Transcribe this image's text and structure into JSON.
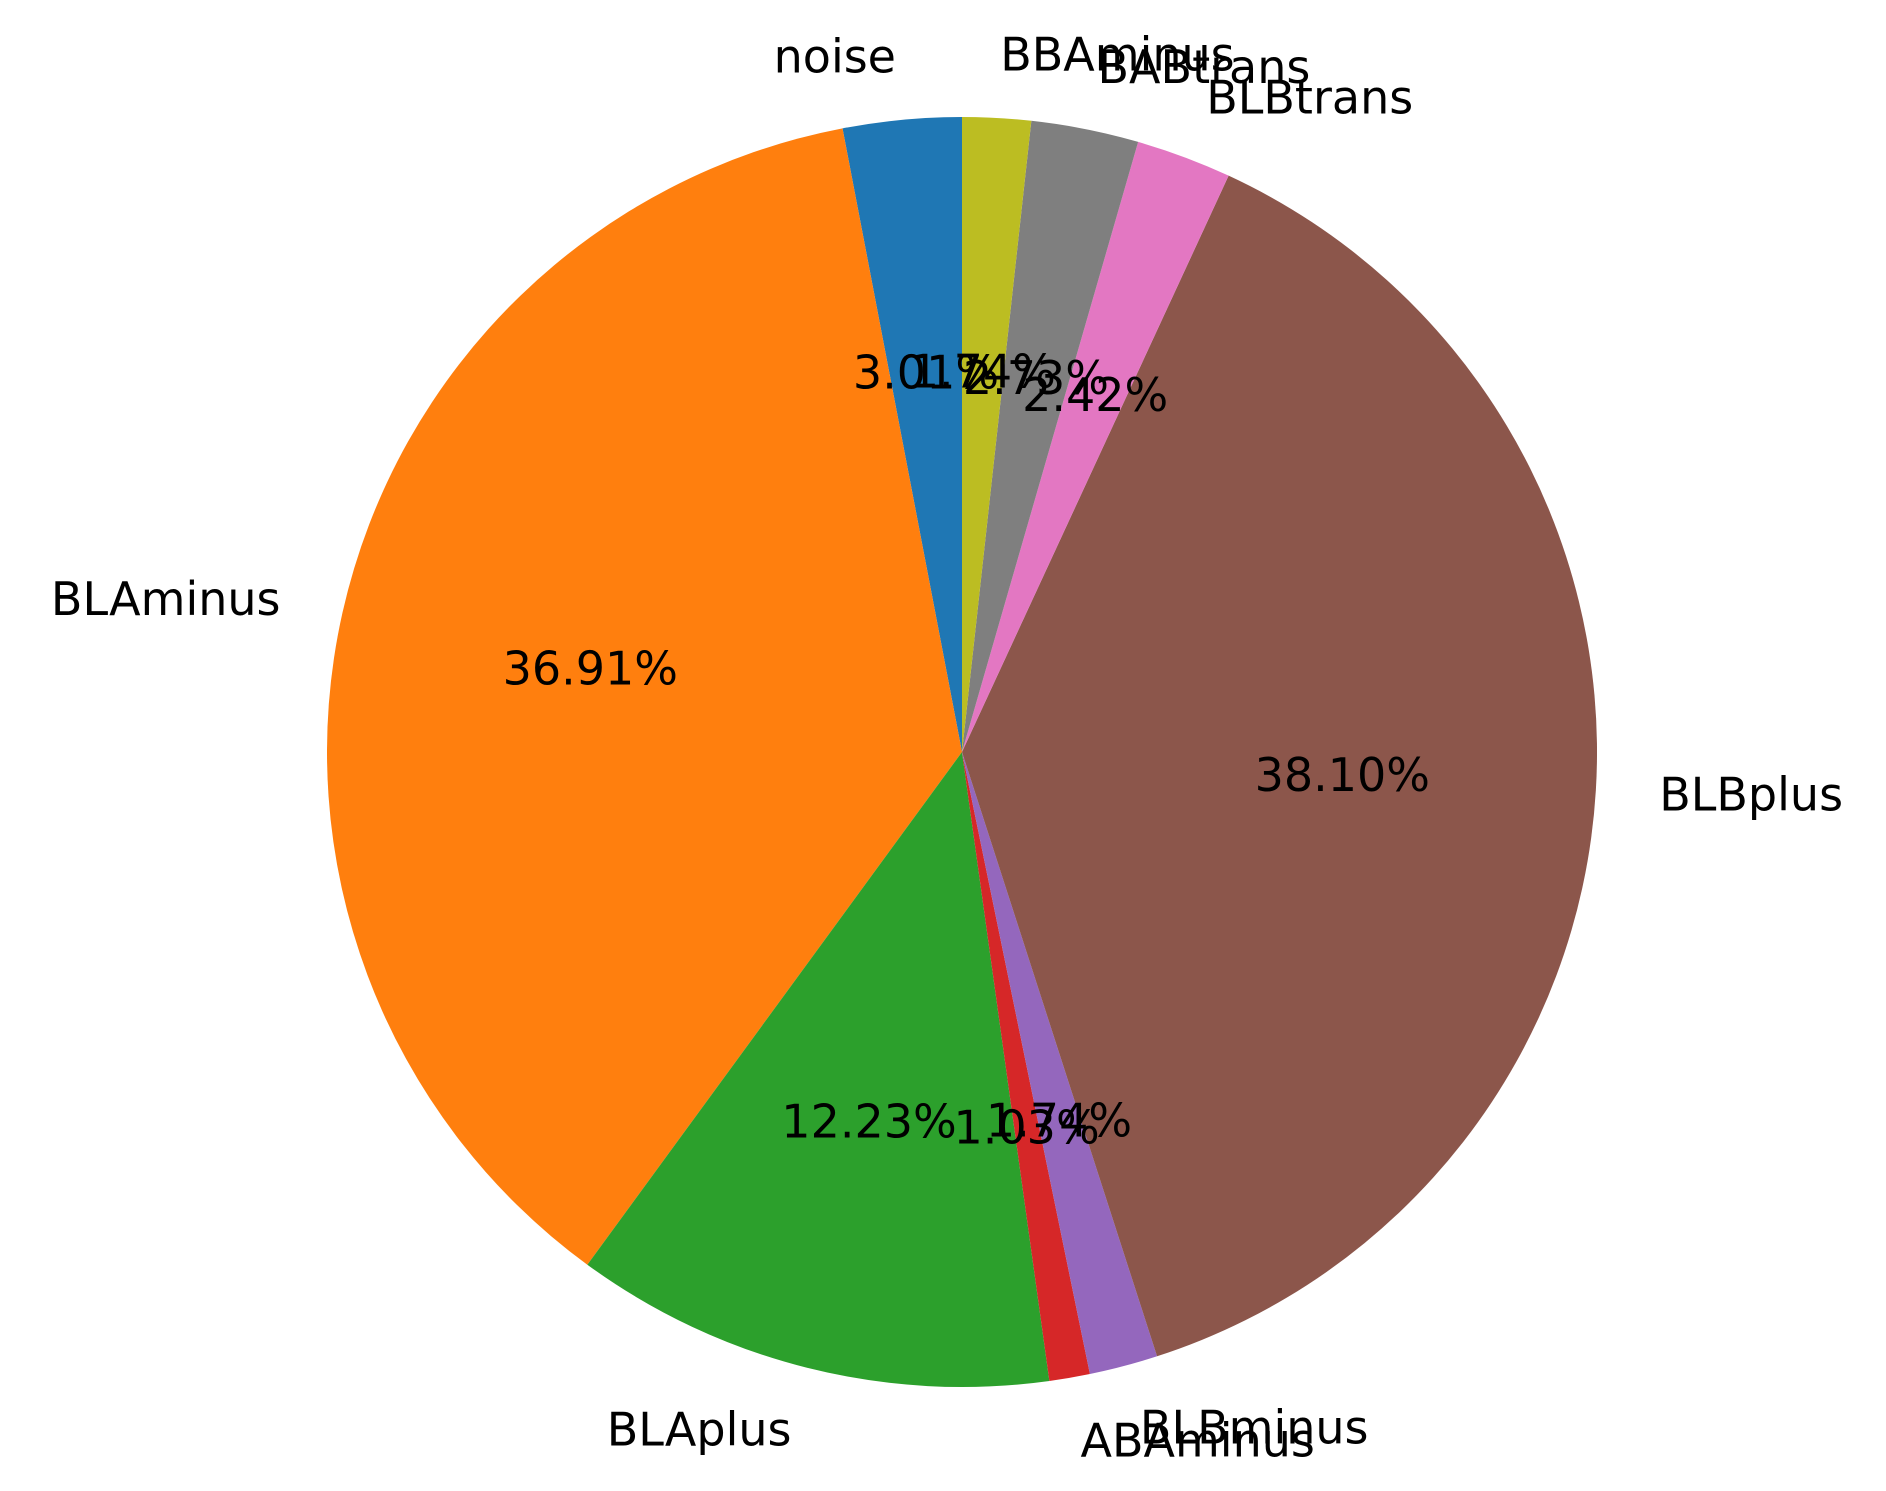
{
  "chart_data": {
    "type": "pie",
    "start_angle_deg": 90,
    "direction": "counterclockwise",
    "slices": [
      {
        "label": "noise",
        "value": 3.01,
        "pct_text": "3.01%",
        "color": "#1f77b4"
      },
      {
        "label": "BLAminus",
        "value": 36.91,
        "pct_text": "36.91%",
        "color": "#ff7f0e"
      },
      {
        "label": "BLAplus",
        "value": 12.23,
        "pct_text": "12.23%",
        "color": "#2ca02c"
      },
      {
        "label": "ABAminus",
        "value": 1.03,
        "pct_text": "1.03%",
        "color": "#d62728"
      },
      {
        "label": "BLBminus",
        "value": 1.74,
        "pct_text": "1.74%",
        "color": "#9467bd"
      },
      {
        "label": "BLBplus",
        "value": 38.1,
        "pct_text": "38.10%",
        "color": "#8c564b"
      },
      {
        "label": "BLBtrans",
        "value": 2.42,
        "pct_text": "2.42%",
        "color": "#e377c2"
      },
      {
        "label": "BABtrans",
        "value": 2.73,
        "pct_text": "2.73%",
        "color": "#7f7f7f"
      },
      {
        "label": "BBAminus",
        "value": 1.74,
        "pct_text": "1.74%",
        "color": "#bcbd22"
      }
    ]
  }
}
